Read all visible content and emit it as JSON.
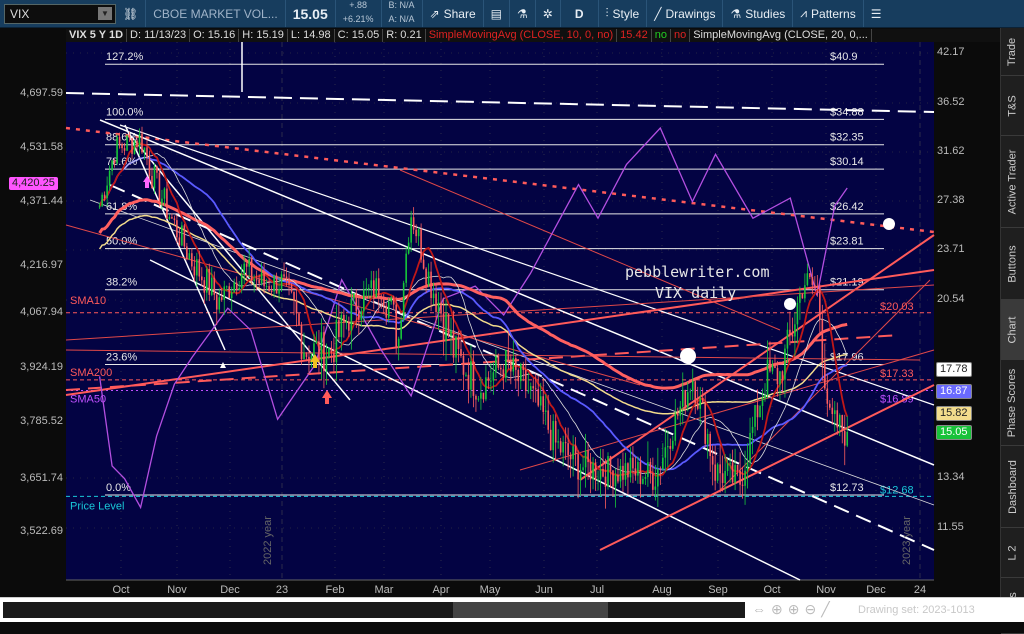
{
  "toolbar": {
    "symbol": "VIX",
    "description": "CBOE MARKET VOL...",
    "last": "15.05",
    "change": "+.88",
    "change_pct": "+6.21%",
    "bid": "B: N/A",
    "ask": "A: N/A",
    "share": "Share",
    "period": "D",
    "style": "Style",
    "drawings": "Drawings",
    "studies": "Studies",
    "patterns": "Patterns"
  },
  "info": {
    "title": "VIX 5 Y 1D",
    "date": "D: 11/13/23",
    "open": "O: 15.16",
    "high": "H: 15.19",
    "low": "L: 14.98",
    "close": "C: 15.05",
    "range": "R: 0.21",
    "study1": "SimpleMovingAvg (CLOSE, 10, 0, no)",
    "study1_val": "15.42",
    "no1": "no",
    "no2": "no",
    "study2": "SimpleMovingAvg (CLOSE, 20, 0,..."
  },
  "tabs": [
    "Trade",
    "T&S",
    "Active Trader",
    "Buttons",
    "Chart",
    "Phase Scores",
    "Dashboard",
    "L 2",
    "News"
  ],
  "bottom": {
    "drawing_set": "Drawing set: 2023-1013"
  },
  "chart_data": {
    "type": "candlestick",
    "title": "pebblewriter.com",
    "subtitle": "VIX daily",
    "right_axis_ticks": [
      "42.17",
      "36.52",
      "31.62",
      "27.38",
      "23.71",
      "20.54",
      "13.34",
      "11.55"
    ],
    "left_axis_ticks": [
      "4,697.59",
      "4,531.58",
      "4,371.44",
      "4,216.97",
      "4,067.94",
      "3,924.19",
      "3,785.52",
      "3,651.74",
      "3,522.69"
    ],
    "x_ticks": [
      "Oct",
      "Nov",
      "Dec",
      "23",
      "Feb",
      "Mar",
      "Apr",
      "May",
      "Jun",
      "Jul",
      "Aug",
      "Sep",
      "Oct",
      "Nov",
      "Dec",
      "24"
    ],
    "year_labels": [
      "2022 year",
      "2023 year"
    ],
    "badges": {
      "left": {
        "value": "4,420.25",
        "color": "#ff55ff"
      },
      "right": [
        {
          "value": "17.78",
          "color": "#ffffff"
        },
        {
          "value": "16.87",
          "color": "#6a6aff"
        },
        {
          "value": "15.82",
          "color": "#f3dc8c"
        },
        {
          "value": "15.05",
          "color": "#18c23a"
        }
      ]
    },
    "fib_levels": [
      {
        "pct": "127.2%",
        "price": "$40.9",
        "value": 40.9
      },
      {
        "pct": "100.0%",
        "price": "$34.88",
        "value": 34.88
      },
      {
        "pct": "88.6%",
        "price": "$32.35",
        "value": 32.35
      },
      {
        "pct": "78.6%",
        "price": "$30.14",
        "value": 30.14
      },
      {
        "pct": "61.8%",
        "price": "$26.42",
        "value": 26.42
      },
      {
        "pct": "50.0%",
        "price": "$23.81",
        "value": 23.81
      },
      {
        "pct": "38.2%",
        "price": "$21.19",
        "value": 21.19
      },
      {
        "pct": "23.6%",
        "price": "$17.96",
        "value": 17.96
      },
      {
        "pct": "0.0%",
        "price": "$12.73",
        "value": 12.73
      }
    ],
    "price_lines": [
      {
        "label": "SMA10",
        "price": "$20.03",
        "value": 20.03,
        "color": "#ff5a5a"
      },
      {
        "label": "SMA200",
        "price": "$17.33",
        "value": 17.33,
        "color": "#ff5a5a"
      },
      {
        "label": "SMA50",
        "price": "$16.89",
        "value": 16.89,
        "color": "#c050ff"
      },
      {
        "label": "Price Level",
        "price": "$12.68",
        "value": 12.68,
        "color": "#19c8d8"
      }
    ],
    "vix_close_approx": [
      [
        "2022-09-19",
        27
      ],
      [
        "2022-09-28",
        32
      ],
      [
        "2022-10-12",
        33
      ],
      [
        "2022-10-20",
        29
      ],
      [
        "2022-10-31",
        25.5
      ],
      [
        "2022-11-10",
        23
      ],
      [
        "2022-11-25",
        20.5
      ],
      [
        "2022-12-09",
        22.5
      ],
      [
        "2022-12-20",
        21.5
      ],
      [
        "2022-12-30",
        21.7
      ],
      [
        "2023-01-13",
        18.5
      ],
      [
        "2023-01-27",
        18.5
      ],
      [
        "2023-02-10",
        20.5
      ],
      [
        "2023-02-24",
        21.5
      ],
      [
        "2023-03-06",
        19
      ],
      [
        "2023-03-13",
        26.5
      ],
      [
        "2023-03-24",
        21.5
      ],
      [
        "2023-04-06",
        18.5
      ],
      [
        "2023-04-20",
        17
      ],
      [
        "2023-05-04",
        18
      ],
      [
        "2023-05-19",
        16.8
      ],
      [
        "2023-06-02",
        14.6
      ],
      [
        "2023-06-16",
        13.8
      ],
      [
        "2023-06-30",
        13.6
      ],
      [
        "2023-07-14",
        13.6
      ],
      [
        "2023-07-28",
        13.4
      ],
      [
        "2023-08-10",
        15.8
      ],
      [
        "2023-08-18",
        17.5
      ],
      [
        "2023-08-31",
        13.6
      ],
      [
        "2023-09-14",
        13.2
      ],
      [
        "2023-09-22",
        15.5
      ],
      [
        "2023-09-29",
        17.5
      ],
      [
        "2023-10-06",
        17.5
      ],
      [
        "2023-10-13",
        19.3
      ],
      [
        "2023-10-20",
        21.7
      ],
      [
        "2023-10-27",
        21.3
      ],
      [
        "2023-11-03",
        15.5
      ],
      [
        "2023-11-13",
        15.05
      ]
    ],
    "spx_line_approx": [
      [
        "2022-09-19",
        3900
      ],
      [
        "2022-09-26",
        3680
      ],
      [
        "2022-10-03",
        3650
      ],
      [
        "2022-10-12",
        3580
      ],
      [
        "2022-10-21",
        3750
      ],
      [
        "2022-10-31",
        3880
      ],
      [
        "2022-11-10",
        3950
      ],
      [
        "2022-11-30",
        4080
      ],
      [
        "2022-12-13",
        4020
      ],
      [
        "2022-12-28",
        3790
      ],
      [
        "2023-01-18",
        3930
      ],
      [
        "2023-02-02",
        4170
      ],
      [
        "2023-02-24",
        3970
      ],
      [
        "2023-03-13",
        3850
      ],
      [
        "2023-03-31",
        4110
      ],
      [
        "2023-04-18",
        4150
      ],
      [
        "2023-05-04",
        4060
      ],
      [
        "2023-05-19",
        4190
      ],
      [
        "2023-06-15",
        4420
      ],
      [
        "2023-06-26",
        4330
      ],
      [
        "2023-07-12",
        4480
      ],
      [
        "2023-07-31",
        4590
      ],
      [
        "2023-08-18",
        4370
      ],
      [
        "2023-08-31",
        4510
      ],
      [
        "2023-09-21",
        4330
      ],
      [
        "2023-10-12",
        4380
      ],
      [
        "2023-10-27",
        4120
      ],
      [
        "2023-11-06",
        4360
      ],
      [
        "2023-11-13",
        4410
      ]
    ]
  }
}
